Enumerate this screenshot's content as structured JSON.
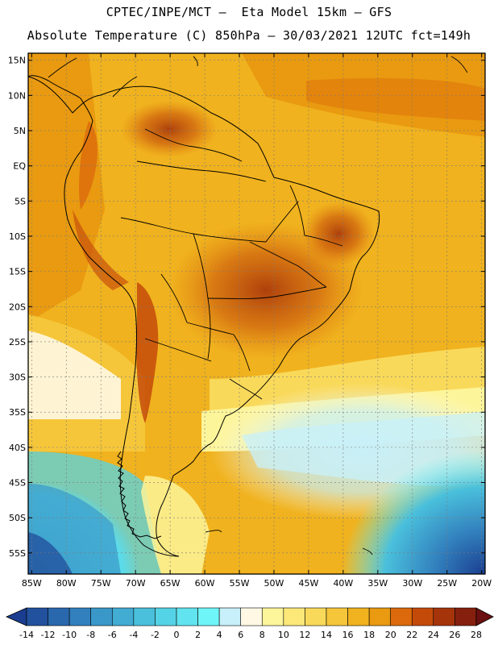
{
  "header": {
    "line1": "CPTEC/INPE/MCT –  Eta Model 15km – GFS",
    "line2": "Absolute Temperature (C) 850hPa – 30/03/2021 12UTC fct=149h"
  },
  "map": {
    "lat_labels": [
      "15N",
      "10N",
      "5N",
      "EQ",
      "5S",
      "10S",
      "15S",
      "20S",
      "25S",
      "30S",
      "35S",
      "40S",
      "45S",
      "50S",
      "55S"
    ],
    "lat_values": [
      15,
      10,
      5,
      0,
      -5,
      -10,
      -15,
      -20,
      -25,
      -30,
      -35,
      -40,
      -45,
      -50,
      -55
    ],
    "lon_labels": [
      "85W",
      "80W",
      "75W",
      "70W",
      "65W",
      "60W",
      "55W",
      "50W",
      "45W",
      "40W",
      "35W",
      "30W",
      "25W",
      "20W"
    ],
    "lon_values": [
      -85,
      -80,
      -75,
      -70,
      -65,
      -60,
      -55,
      -50,
      -45,
      -40,
      -35,
      -30,
      -25,
      -20
    ],
    "extent": {
      "lon_min": -85.5,
      "lon_max": -19.5,
      "lat_min": -58,
      "lat_max": 16
    }
  },
  "colorbar": {
    "tick_labels": [
      "-14",
      "-12",
      "-10",
      "-8",
      "-6",
      "-4",
      "-2",
      "0",
      "2",
      "4",
      "6",
      "8",
      "10",
      "12",
      "14",
      "16",
      "18",
      "20",
      "22",
      "24",
      "26",
      "28"
    ],
    "colors": [
      "#1a3d8f",
      "#22519e",
      "#2a68ad",
      "#3280bd",
      "#3a98c9",
      "#42acd3",
      "#4ac0dc",
      "#55d3e6",
      "#61e4ef",
      "#6ef5f8",
      "#c8f0fa",
      "#fff8e4",
      "#fdf59a",
      "#fbe878",
      "#f9d95a",
      "#f5c63a",
      "#f0b21e",
      "#e99a10",
      "#dc6a0c",
      "#c44a0a",
      "#a6340a",
      "#86200e",
      "#6a1010"
    ]
  }
}
